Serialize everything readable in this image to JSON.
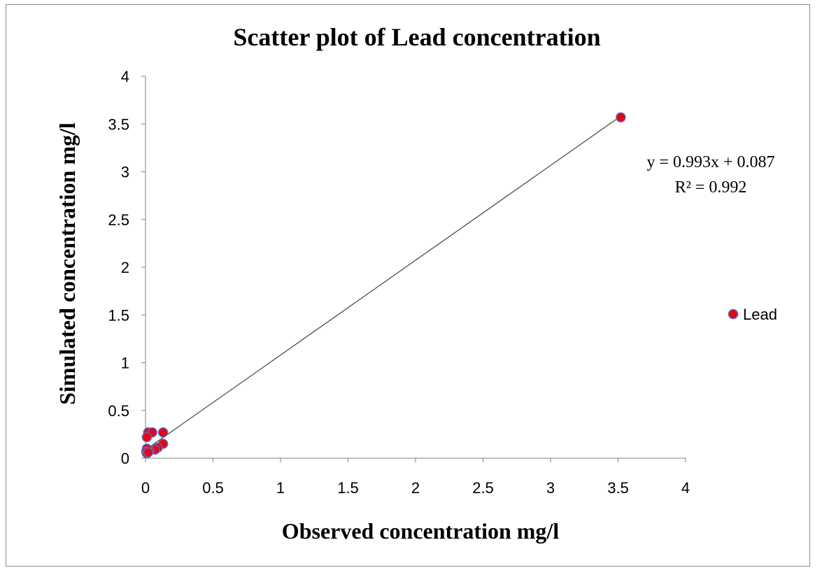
{
  "chart_data": {
    "type": "scatter",
    "title": "Scatter plot of Lead concentration",
    "xlabel": "Observed concentration mg/l",
    "ylabel": "Simulated concentration mg/l",
    "xlim": [
      0,
      4
    ],
    "ylim": [
      0,
      4
    ],
    "xticks": [
      "0",
      "0.5",
      "1",
      "1.5",
      "2",
      "2.5",
      "3",
      "3.5",
      "4"
    ],
    "yticks": [
      "0",
      "0.5",
      "1",
      "1.5",
      "2",
      "2.5",
      "3",
      "3.5",
      "4"
    ],
    "grid": false,
    "legend_position": "right",
    "series": [
      {
        "name": "Lead",
        "color": "#e8001c",
        "edge_color": "#5a6fb0",
        "points": [
          {
            "x": 3.52,
            "y": 3.57
          },
          {
            "x": 0.02,
            "y": 0.27
          },
          {
            "x": 0.05,
            "y": 0.27
          },
          {
            "x": 0.13,
            "y": 0.27
          },
          {
            "x": 0.01,
            "y": 0.22
          },
          {
            "x": 0.13,
            "y": 0.15
          },
          {
            "x": 0.09,
            "y": 0.11
          },
          {
            "x": 0.07,
            "y": 0.09
          },
          {
            "x": 0.03,
            "y": 0.08
          },
          {
            "x": 0.01,
            "y": 0.1
          },
          {
            "x": 0.005,
            "y": 0.07
          },
          {
            "x": 0.01,
            "y": 0.05
          },
          {
            "x": 0.02,
            "y": 0.06
          }
        ]
      }
    ],
    "trendline": {
      "slope": 0.993,
      "intercept": 0.087,
      "x_range": [
        0,
        3.52
      ],
      "equation": "y = 0.993x + 0.087",
      "r2_label": "R² = 0.992"
    }
  }
}
